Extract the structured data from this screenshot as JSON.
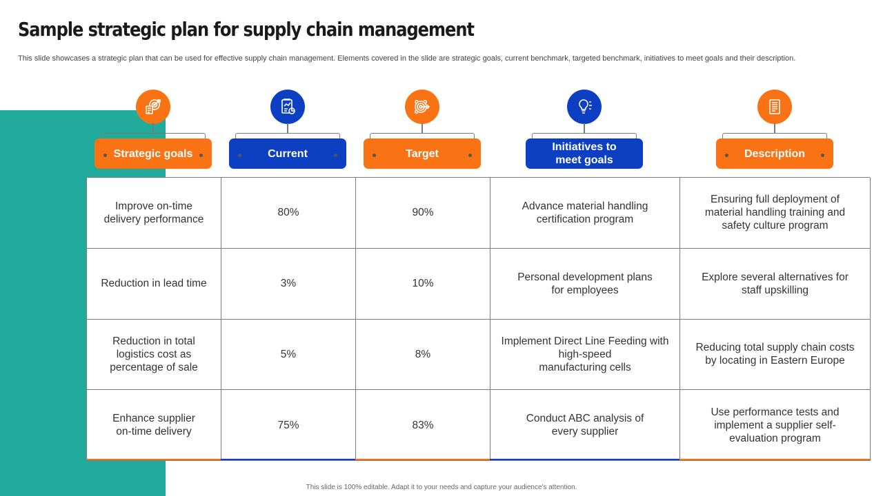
{
  "slide": {
    "title": "Sample strategic plan for supply chain management",
    "subtitle": "This slide showcases a strategic plan that can be used for effective supply chain management. Elements covered in the slide are strategic goals, current benchmark, targeted benchmark, initiatives to meet goals and their description.",
    "footer": "This slide is 100% editable. Adapt it to your needs and capture your audience's attention."
  },
  "colors": {
    "orange": "#f97315",
    "blue": "#0d3fc3",
    "teal": "#20ab9d"
  },
  "columns": [
    {
      "label": "Strategic goals",
      "icon": "target-document-icon",
      "color": "orange"
    },
    {
      "label": "Current",
      "icon": "chart-report-icon",
      "color": "blue"
    },
    {
      "label": "Target",
      "icon": "target-arrow-icon",
      "color": "orange"
    },
    {
      "label": "Initiatives to\nmeet goals",
      "icon": "lightbulb-icon",
      "color": "blue"
    },
    {
      "label": "Description",
      "icon": "document-icon",
      "color": "orange"
    }
  ],
  "rows": [
    [
      "Improve on-time\ndelivery performance",
      "80%",
      "90%",
      "Advance material handling\ncertification program",
      "Ensuring full deployment of\nmaterial handling training and\nsafety culture program"
    ],
    [
      "Reduction in lead time",
      "3%",
      "10%",
      "Personal development plans\nfor employees",
      "Explore several alternatives for\nstaff upskilling"
    ],
    [
      "Reduction in total\nlogistics cost as\npercentage of sale",
      "5%",
      "8%",
      "Implement  Direct Line Feeding with\nhigh-speed\nmanufacturing  cells",
      "Reducing total supply chain costs\nby locating in Eastern Europe"
    ],
    [
      "Enhance supplier\non-time delivery",
      "75%",
      "83%",
      "Conduct ABC analysis of\nevery supplier",
      "Use performance tests and\nimplement a supplier self-\nevaluation program"
    ]
  ]
}
